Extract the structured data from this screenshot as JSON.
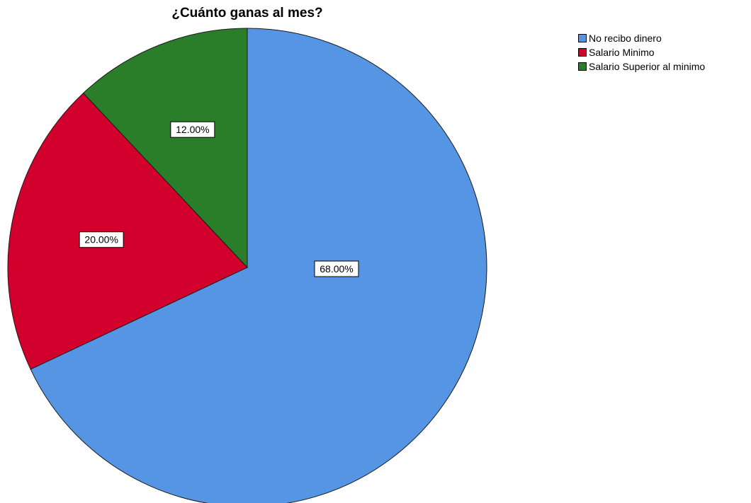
{
  "chart_data": {
    "type": "pie",
    "title": "¿Cuánto ganas al mes?",
    "categories": [
      "No recibo dinero",
      "Salario Minimo",
      "Salario Superior al minimo"
    ],
    "values": [
      68.0,
      20.0,
      12.0
    ],
    "labels": [
      "68.00%",
      "20.00%",
      "12.00%"
    ],
    "colors": [
      "#5694E4",
      "#D2002D",
      "#2A7E2A"
    ],
    "legend_position": "top-right"
  }
}
